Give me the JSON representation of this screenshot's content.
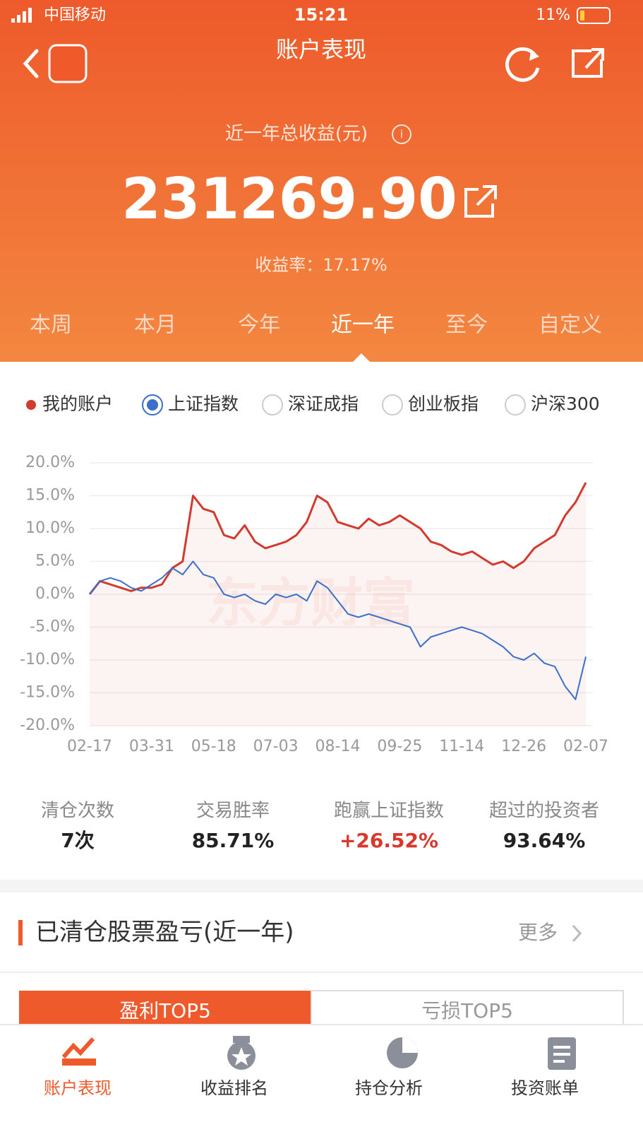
{
  "status_bar": {
    "carrier": "中国移动",
    "time": "15:21",
    "battery": "11%"
  },
  "header": {
    "title": "账户表现"
  },
  "summary": {
    "label": "近一年总收益(元)",
    "amount": "231269.90",
    "rate": "收益率：17.17%"
  },
  "tabs": {
    "items": [
      "本周",
      "本月",
      "今年",
      "近一年",
      "至今",
      "自定义"
    ],
    "selected": 3
  },
  "compare_options": [
    "深证成指",
    "创业板指",
    "沪深300"
  ],
  "chart_data": {
    "type": "line",
    "watermark": "东方财富",
    "categories": [
      "02-17",
      null,
      null,
      null,
      null,
      null,
      "03-31",
      null,
      null,
      null,
      null,
      null,
      "05-18",
      null,
      null,
      null,
      null,
      null,
      "07-03",
      null,
      null,
      null,
      null,
      null,
      "08-14",
      null,
      null,
      null,
      null,
      null,
      "09-25",
      null,
      null,
      null,
      null,
      null,
      "11-14",
      null,
      null,
      null,
      null,
      null,
      "12-26",
      null,
      null,
      null,
      null,
      null,
      "02-07"
    ],
    "series": [
      {
        "name": "我的账户",
        "color": "#d23a2f",
        "values": [
          0,
          2,
          1.5,
          1,
          0.5,
          1,
          1,
          1.5,
          4,
          5,
          15,
          13,
          12.5,
          9,
          8.5,
          10.5,
          8,
          7,
          7.5,
          8,
          9,
          11,
          15,
          14,
          11,
          10.5,
          10,
          11.5,
          10.5,
          11,
          12,
          11,
          10,
          8,
          7.5,
          6.5,
          6,
          6.5,
          5.5,
          4.5,
          5,
          4,
          5,
          7,
          8,
          9,
          12,
          14,
          17
        ]
      },
      {
        "name": "上证指数",
        "color": "#3b6fc9",
        "values": [
          0,
          2,
          2.5,
          2,
          1,
          0.5,
          1.5,
          2.5,
          4,
          3,
          5,
          3,
          2.5,
          0,
          -0.5,
          0,
          -1,
          -1.5,
          0,
          -0.5,
          0,
          -1,
          2,
          1,
          -1,
          -3,
          -3.5,
          -3,
          -3.5,
          -4,
          -4.5,
          -5,
          -8,
          -6.5,
          -6,
          -5.5,
          -5,
          -5.5,
          -6,
          -7,
          -8,
          -9.5,
          -10,
          -9,
          -10.5,
          -11,
          -14,
          -16,
          -9.5
        ]
      }
    ],
    "ylim": [
      -20,
      20
    ],
    "yticks": [
      {
        "value": 20,
        "label": "20.0%"
      },
      {
        "value": 15,
        "label": "15.0%"
      },
      {
        "value": 10,
        "label": "10.0%"
      },
      {
        "value": 5,
        "label": "5.0%"
      },
      {
        "value": 0,
        "label": "0.0%"
      },
      {
        "value": -5,
        "label": "-5.0%"
      },
      {
        "value": -10,
        "label": "-10.0%"
      },
      {
        "value": -15,
        "label": "-15.0%"
      },
      {
        "value": -20,
        "label": "-20.0%"
      }
    ],
    "grid": true
  },
  "stats": [
    {
      "label": "清仓次数",
      "value": "7次"
    },
    {
      "label": "交易胜率",
      "value": "85.71%"
    },
    {
      "label": "跑赢上证指数",
      "value": "+26.52%"
    },
    {
      "label": "超过的投资者",
      "value": "93.64%"
    }
  ],
  "section": {
    "title": "已清仓股票盈亏(近一年)",
    "more": "更多"
  },
  "subtabs": [
    "盈利TOP5",
    "亏损TOP5"
  ],
  "nav": [
    "账户表现",
    "收益排名",
    "持仓分析",
    "投资账单"
  ]
}
